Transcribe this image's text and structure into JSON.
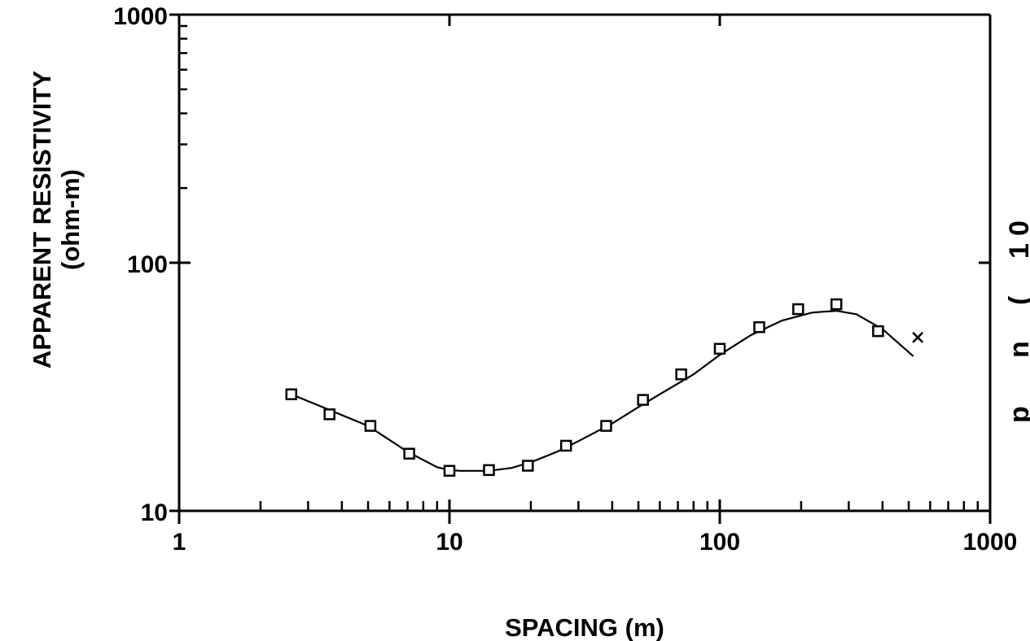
{
  "chart_data": {
    "type": "scatter",
    "title": "",
    "xlabel": "SPACING  (m)",
    "ylabel_lines": [
      "APPARENT RESISTIVITY",
      "(ohm-m)"
    ],
    "x_scale": "log",
    "y_scale": "log",
    "xlim": [
      1,
      1000
    ],
    "ylim": [
      10,
      1000
    ],
    "x_ticks": [
      {
        "value": 1,
        "label": "1"
      },
      {
        "value": 10,
        "label": "10"
      },
      {
        "value": 100,
        "label": "100"
      },
      {
        "value": 1000,
        "label": "1000"
      }
    ],
    "y_ticks": [
      {
        "value": 10,
        "label": "10"
      },
      {
        "value": 100,
        "label": "100"
      },
      {
        "value": 1000,
        "label": "1000"
      }
    ],
    "grid": false,
    "legend": "none",
    "series": [
      {
        "kind": "points",
        "marker": "square",
        "x": [
          2.6,
          3.6,
          5.1,
          7.1,
          10,
          14,
          19.5,
          27,
          38,
          52,
          72,
          100,
          140,
          195,
          270,
          385
        ],
        "y": [
          29.5,
          24.5,
          22,
          17,
          14.5,
          14.6,
          15.2,
          18.3,
          22,
          28,
          35.5,
          45,
          55,
          65,
          68,
          53
        ]
      },
      {
        "kind": "points",
        "marker": "x",
        "x": [
          540
        ],
        "y": [
          50
        ]
      },
      {
        "kind": "curve",
        "x": [
          2.6,
          3.6,
          5,
          7,
          9,
          10,
          11,
          12,
          14,
          17,
          20,
          25,
          30,
          40,
          50,
          60,
          80,
          100,
          130,
          170,
          220,
          270,
          320,
          400,
          520
        ],
        "y": [
          29.5,
          25.5,
          22,
          17.3,
          15,
          14.6,
          14.5,
          14.5,
          14.5,
          14.9,
          15.7,
          17.3,
          19.1,
          22.5,
          26.2,
          29.5,
          35.5,
          42.5,
          51,
          58.5,
          63,
          64,
          62,
          54,
          42
        ]
      }
    ],
    "right_axis_fragment": [
      "p",
      "n",
      "(",
      "1",
      "0"
    ]
  }
}
